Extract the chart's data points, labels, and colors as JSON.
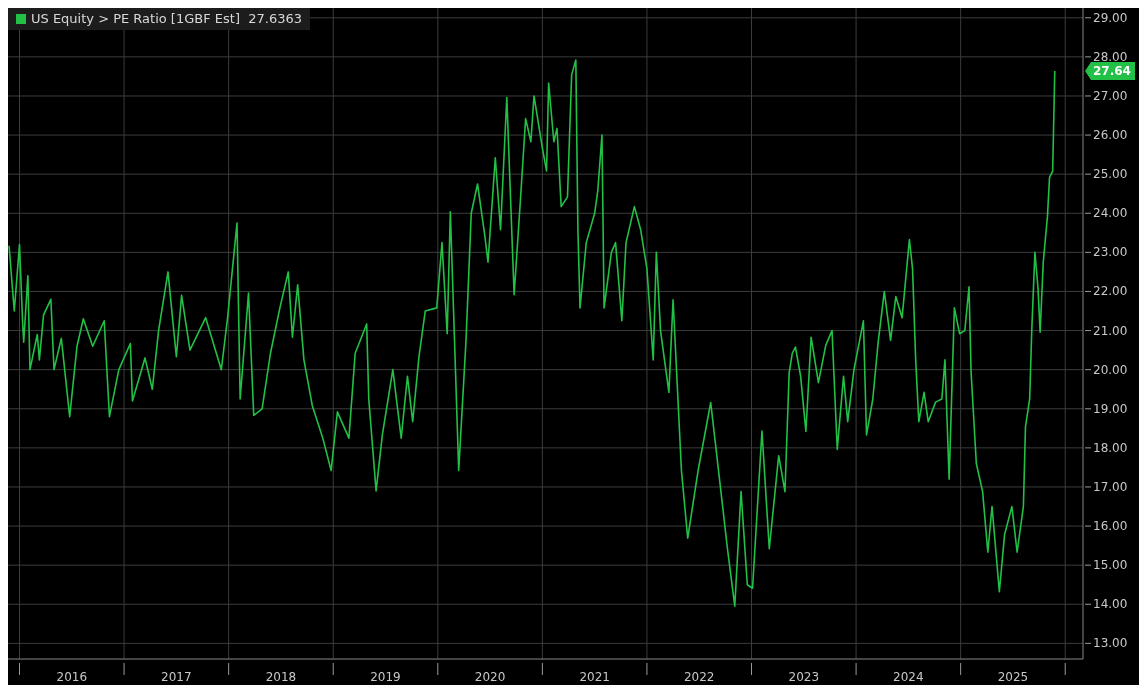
{
  "chart_data": {
    "type": "line",
    "legend": "top left",
    "grid": true,
    "marker": "none",
    "line_style": "solid",
    "xlim": [
      2015.89,
      2026.17
    ],
    "xticks": [
      {
        "value": 2016,
        "label": null
      },
      {
        "value": 2016.5,
        "label": "2016"
      },
      {
        "value": 2017,
        "label": null
      },
      {
        "value": 2017.5,
        "label": "2017"
      },
      {
        "value": 2018,
        "label": null
      },
      {
        "value": 2018.5,
        "label": "2018"
      },
      {
        "value": 2019,
        "label": null
      },
      {
        "value": 2019.5,
        "label": "2019"
      },
      {
        "value": 2020,
        "label": null
      },
      {
        "value": 2020.5,
        "label": "2020"
      },
      {
        "value": 2021,
        "label": null
      },
      {
        "value": 2021.5,
        "label": "2021"
      },
      {
        "value": 2022,
        "label": null
      },
      {
        "value": 2022.5,
        "label": "2022"
      },
      {
        "value": 2023,
        "label": null
      },
      {
        "value": 2023.5,
        "label": "2023"
      },
      {
        "value": 2024,
        "label": null
      },
      {
        "value": 2024.5,
        "label": "2024"
      },
      {
        "value": 2025,
        "label": null
      },
      {
        "value": 2025.5,
        "label": "2025"
      },
      {
        "value": 2026,
        "label": null
      }
    ],
    "ylim": [
      12.6,
      29.25
    ],
    "yticks": [
      {
        "value": 13,
        "label": "13.00"
      },
      {
        "value": 14,
        "label": "14.00"
      },
      {
        "value": 15,
        "label": "15.00"
      },
      {
        "value": 16,
        "label": "16.00"
      },
      {
        "value": 17,
        "label": "17.00"
      },
      {
        "value": 18,
        "label": "18.00"
      },
      {
        "value": 19,
        "label": "19.00"
      },
      {
        "value": 20,
        "label": "20.00"
      },
      {
        "value": 21,
        "label": "21.00"
      },
      {
        "value": 22,
        "label": "22.00"
      },
      {
        "value": 23,
        "label": "23.00"
      },
      {
        "value": 24,
        "label": "24.00"
      },
      {
        "value": 25,
        "label": "25.00"
      },
      {
        "value": 26,
        "label": "26.00"
      },
      {
        "value": 27,
        "label": "27.00"
      },
      {
        "value": 28,
        "label": "28.00"
      },
      {
        "value": 29,
        "label": "29.00"
      }
    ],
    "annotations": [
      "27.64"
    ],
    "series": [
      {
        "name": "US Equity > PE Ratio [1GBF Est]  27.6363",
        "color": "#22c046",
        "x": [
          2015.9,
          2015.95,
          2016.0,
          2016.03,
          2016.04,
          2016.08,
          2016.1,
          2016.17,
          2016.19,
          2016.23,
          2016.3,
          2016.33,
          2016.4,
          2016.48,
          2016.55,
          2016.61,
          2016.7,
          2016.81,
          2016.86,
          2016.95,
          2017.06,
          2017.08,
          2017.2,
          2017.27,
          2017.33,
          2017.42,
          2017.5,
          2017.55,
          2017.63,
          2017.78,
          2017.93,
          2017.99,
          2018.08,
          2018.11,
          2018.19,
          2018.24,
          2018.32,
          2018.4,
          2018.49,
          2018.57,
          2018.61,
          2018.66,
          2018.72,
          2018.8,
          2018.9,
          2018.98,
          2019.04,
          2019.15,
          2019.21,
          2019.32,
          2019.34,
          2019.41,
          2019.47,
          2019.57,
          2019.65,
          2019.71,
          2019.76,
          2019.82,
          2019.88,
          2019.99,
          2020.04,
          2020.09,
          2020.12,
          2020.16,
          2020.2,
          2020.27,
          2020.32,
          2020.38,
          2020.45,
          2020.48,
          2020.55,
          2020.6,
          2020.66,
          2020.73,
          2020.79,
          2020.84,
          2020.89,
          2020.92,
          2021.0,
          2021.04,
          2021.06,
          2021.11,
          2021.14,
          2021.18,
          2021.24,
          2021.28,
          2021.32,
          2021.34,
          2021.36,
          2021.42,
          2021.5,
          2021.53,
          2021.57,
          2021.59,
          2021.66,
          2021.7,
          2021.76,
          2021.8,
          2021.88,
          2021.94,
          2022.0,
          2022.06,
          2022.09,
          2022.13,
          2022.21,
          2022.25,
          2022.33,
          2022.39,
          2022.49,
          2022.61,
          2022.7,
          2022.77,
          2022.84,
          2022.9,
          2022.96,
          2023.01,
          2023.1,
          2023.17,
          2023.26,
          2023.32,
          2023.36,
          2023.39,
          2023.42,
          2023.47,
          2023.52,
          2023.57,
          2023.64,
          2023.71,
          2023.77,
          2023.82,
          2023.88,
          2023.92,
          2023.98,
          2024.07,
          2024.1,
          2024.16,
          2024.21,
          2024.27,
          2024.33,
          2024.38,
          2024.44,
          2024.51,
          2024.54,
          2024.57,
          2024.6,
          2024.65,
          2024.69,
          2024.76,
          2024.82,
          2024.85,
          2024.89,
          2024.94,
          2024.99,
          2025.04,
          2025.08,
          2025.1,
          2025.15,
          2025.21,
          2025.26,
          2025.3,
          2025.37,
          2025.42,
          2025.49,
          2025.54,
          2025.6,
          2025.62,
          2025.66,
          2025.68,
          2025.71,
          2025.74,
          2025.76,
          2025.79,
          2025.83,
          2025.85,
          2025.88,
          2025.9
        ],
        "values": [
          23.17,
          21.5,
          23.2,
          21.2,
          20.7,
          22.4,
          20.0,
          20.9,
          20.25,
          21.4,
          21.8,
          20.0,
          20.8,
          18.8,
          20.6,
          21.3,
          20.6,
          21.25,
          18.8,
          20.0,
          20.67,
          19.2,
          20.3,
          19.5,
          21.0,
          22.5,
          20.33,
          21.9,
          20.5,
          21.33,
          20.0,
          21.33,
          23.75,
          19.25,
          21.96,
          18.83,
          19.0,
          20.42,
          21.58,
          22.5,
          20.83,
          22.17,
          20.25,
          19.08,
          18.25,
          17.42,
          18.92,
          18.25,
          20.42,
          21.17,
          19.25,
          16.9,
          18.33,
          20.0,
          18.25,
          19.83,
          18.67,
          20.33,
          21.5,
          21.58,
          23.25,
          20.92,
          24.04,
          20.75,
          17.42,
          20.75,
          24.0,
          24.75,
          23.42,
          22.75,
          25.42,
          23.58,
          26.96,
          21.92,
          24.33,
          26.42,
          25.83,
          27.0,
          25.67,
          25.08,
          27.33,
          25.83,
          26.17,
          24.17,
          24.42,
          27.54,
          27.92,
          23.58,
          21.58,
          23.25,
          24.0,
          24.58,
          26.0,
          21.58,
          23.0,
          23.25,
          21.25,
          23.25,
          24.17,
          23.58,
          22.58,
          20.25,
          23.0,
          21.0,
          19.42,
          21.79,
          17.42,
          15.69,
          17.43,
          19.16,
          17.06,
          15.42,
          13.95,
          16.88,
          14.5,
          14.41,
          18.43,
          15.42,
          17.8,
          16.88,
          19.92,
          20.42,
          20.58,
          19.83,
          18.42,
          20.83,
          19.67,
          20.62,
          21.0,
          17.96,
          19.83,
          18.67,
          20.0,
          21.25,
          18.33,
          19.25,
          20.67,
          22.0,
          20.75,
          21.87,
          21.33,
          23.33,
          22.58,
          20.25,
          18.67,
          19.42,
          18.67,
          19.17,
          19.25,
          20.25,
          17.2,
          21.58,
          20.92,
          21.0,
          22.12,
          19.92,
          17.6,
          16.88,
          15.33,
          16.5,
          14.32,
          15.78,
          16.5,
          15.33,
          16.5,
          18.54,
          19.25,
          21.0,
          23.0,
          22.08,
          20.96,
          22.75,
          23.92,
          24.92,
          25.08,
          27.64
        ]
      }
    ]
  }
}
